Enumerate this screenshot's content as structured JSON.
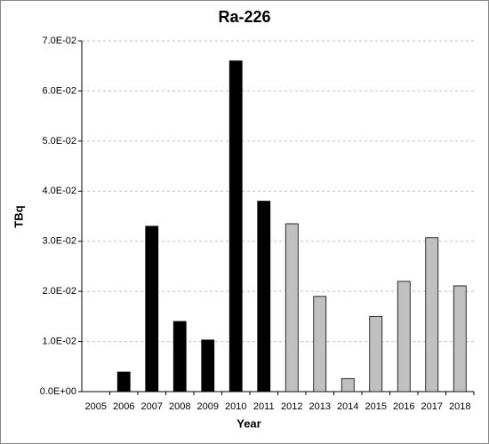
{
  "chart_data": {
    "type": "bar",
    "title": "Ra-226",
    "x_label": "Year",
    "y_label": "TBq",
    "categories": [
      "2005",
      "2006",
      "2007",
      "2008",
      "2009",
      "2010",
      "2011",
      "2012",
      "2013",
      "2014",
      "2015",
      "2016",
      "2017",
      "2018"
    ],
    "values": [
      null,
      0.0039,
      0.033,
      0.014,
      0.0103,
      0.066,
      0.038,
      0.0335,
      0.019,
      0.0026,
      0.015,
      0.022,
      0.0307,
      0.0211
    ],
    "colors": [
      null,
      "#000000",
      "#000000",
      "#000000",
      "#000000",
      "#000000",
      "#000000",
      "#c0c0c0",
      "#c0c0c0",
      "#c0c0c0",
      "#c0c0c0",
      "#c0c0c0",
      "#c0c0c0",
      "#c0c0c0"
    ],
    "ylim": [
      0,
      0.07
    ],
    "yticks": [
      {
        "value": 0,
        "label": "0.0E+00"
      },
      {
        "value": 0.01,
        "label": "1.0E-02"
      },
      {
        "value": 0.02,
        "label": "2.0E-02"
      },
      {
        "value": 0.03,
        "label": "3.0E-02"
      },
      {
        "value": 0.04,
        "label": "4.0E-02"
      },
      {
        "value": 0.05,
        "label": "5.0E-02"
      },
      {
        "value": 0.06,
        "label": "6.0E-02"
      },
      {
        "value": 0.07,
        "label": "7.0E-02"
      }
    ],
    "grid": true
  }
}
